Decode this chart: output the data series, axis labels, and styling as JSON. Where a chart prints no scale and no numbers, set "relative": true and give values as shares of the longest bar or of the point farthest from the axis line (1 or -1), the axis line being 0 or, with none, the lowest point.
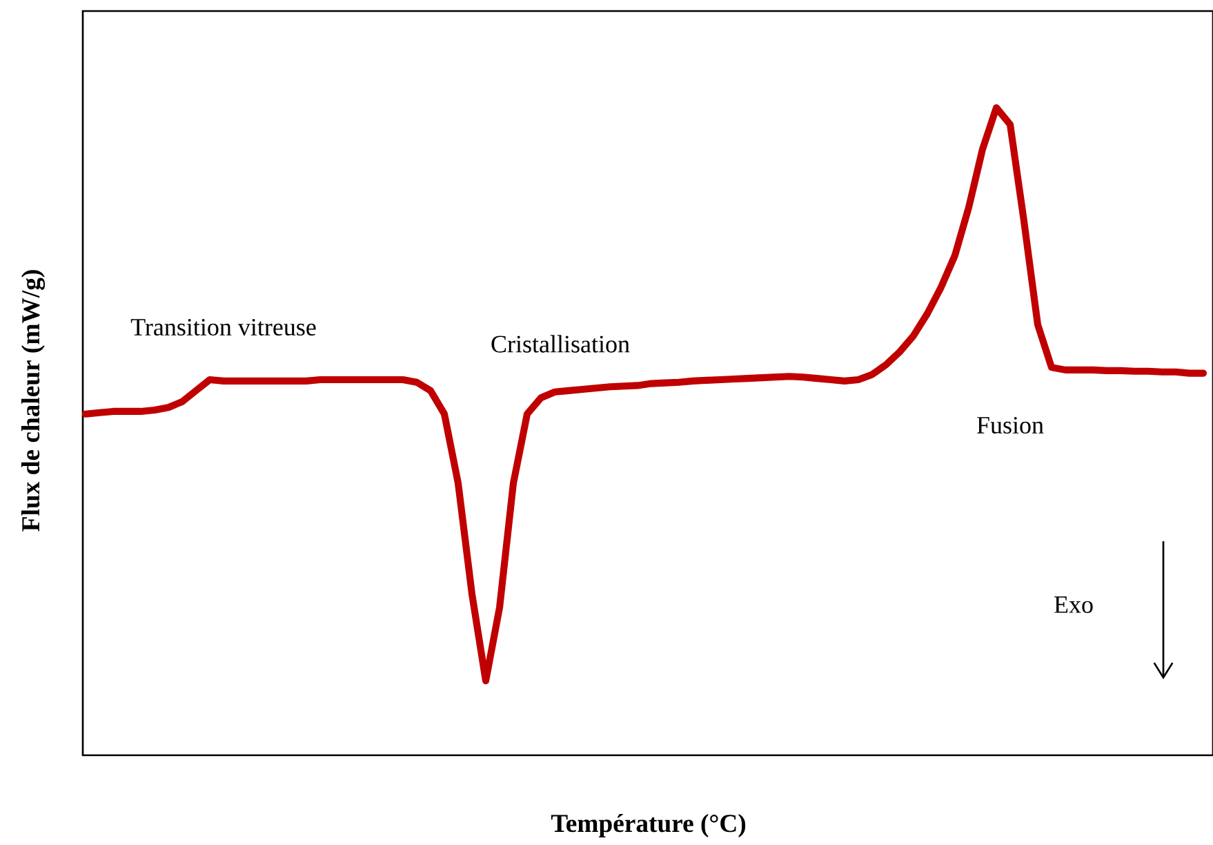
{
  "chart_data": {
    "type": "line",
    "xlabel": "Température (°C)",
    "ylabel": "Flux de chaleur (mW/g)",
    "relative": true,
    "categories": [
      null,
      null,
      null,
      null,
      null,
      null,
      null,
      null,
      null,
      null,
      null,
      null,
      null,
      null,
      null,
      null,
      null,
      null,
      null,
      null,
      null,
      null,
      null,
      null,
      null,
      null,
      null,
      null,
      null,
      null,
      null,
      null,
      null,
      null,
      null,
      null,
      null,
      null,
      null,
      null,
      null,
      null,
      null,
      null,
      null,
      null,
      null,
      null,
      null,
      null,
      null,
      null,
      null,
      null,
      null,
      null,
      null,
      null,
      null,
      null,
      null,
      null,
      null,
      null,
      null,
      null,
      null,
      null,
      null,
      null,
      null,
      null,
      null,
      null,
      null,
      null,
      null,
      null,
      null,
      null,
      null,
      null
    ],
    "series": [
      {
        "color": "#c00000",
        "values": [
          0.527,
          0.529,
          0.531,
          0.531,
          0.531,
          0.533,
          0.537,
          0.546,
          0.563,
          0.58,
          0.578,
          0.578,
          0.578,
          0.578,
          0.578,
          0.578,
          0.578,
          0.58,
          0.58,
          0.58,
          0.58,
          0.58,
          0.58,
          0.58,
          0.576,
          0.563,
          0.527,
          0.42,
          0.249,
          0.115,
          0.228,
          0.42,
          0.527,
          0.552,
          0.561,
          0.563,
          0.565,
          0.567,
          0.569,
          0.57,
          0.571,
          0.574,
          0.575,
          0.576,
          0.578,
          0.579,
          0.58,
          0.581,
          0.582,
          0.583,
          0.584,
          0.585,
          0.584,
          0.582,
          0.58,
          0.578,
          0.58,
          0.588,
          0.603,
          0.623,
          0.648,
          0.682,
          0.723,
          0.772,
          0.846,
          0.936,
          1,
          0.974,
          0.825,
          0.665,
          0.599,
          0.595,
          0.595,
          0.595,
          0.594,
          0.594,
          0.593,
          0.593,
          0.592,
          0.592,
          0.59,
          0.59
        ]
      }
    ],
    "annotations": [
      "Transition vitreuse",
      "Cristallisation",
      "Fusion",
      "Exo"
    ]
  }
}
